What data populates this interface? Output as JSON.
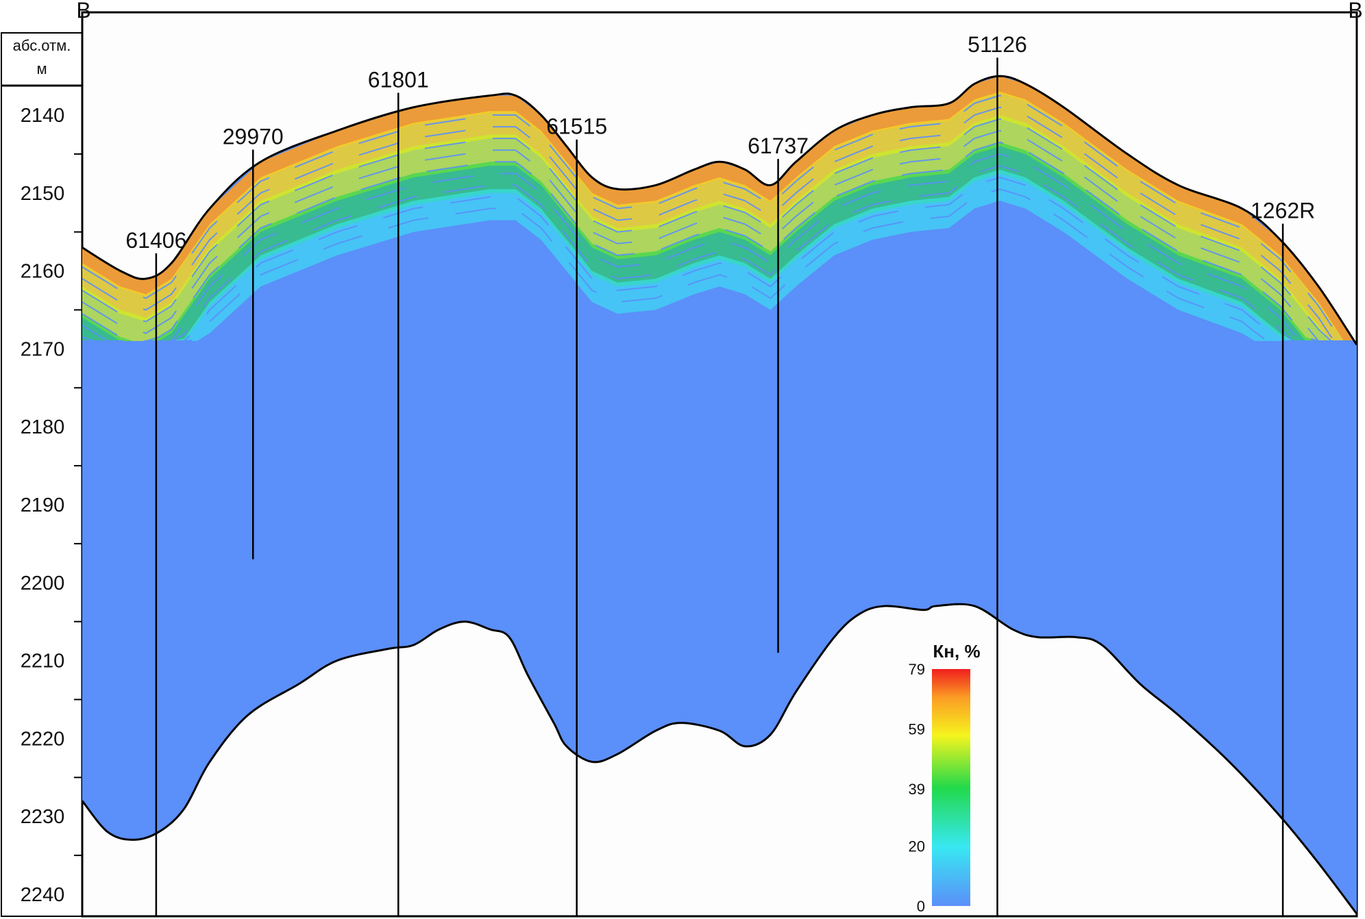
{
  "corner_labels": {
    "left": "В",
    "right": "В"
  },
  "depth_axis": {
    "header_line1": "абс.отм.",
    "header_line2": "м",
    "ticks": [
      2140,
      2150,
      2160,
      2170,
      2180,
      2190,
      2200,
      2210,
      2220,
      2230,
      2240
    ]
  },
  "wells": [
    {
      "id": "61406",
      "x_pct": 5.8,
      "bottom_depth": 2245
    },
    {
      "id": "29970",
      "x_pct": 13.4,
      "bottom_depth": 2197
    },
    {
      "id": "61801",
      "x_pct": 24.8,
      "bottom_depth": 2245
    },
    {
      "id": "61515",
      "x_pct": 38.8,
      "bottom_depth": 2245
    },
    {
      "id": "61737",
      "x_pct": 54.6,
      "bottom_depth": 2209
    },
    {
      "id": "51126",
      "x_pct": 71.8,
      "bottom_depth": 2245
    },
    {
      "id": "1262R",
      "x_pct": 94.2,
      "bottom_depth": 2245
    }
  ],
  "top_surface": [
    [
      0,
      2157
    ],
    [
      3,
      2160
    ],
    [
      5,
      2161
    ],
    [
      7,
      2159
    ],
    [
      10,
      2152
    ],
    [
      14,
      2146
    ],
    [
      20,
      2142
    ],
    [
      26,
      2139
    ],
    [
      32,
      2137.5
    ],
    [
      34,
      2137.5
    ],
    [
      36,
      2140
    ],
    [
      38,
      2144
    ],
    [
      40,
      2148
    ],
    [
      42,
      2149.5
    ],
    [
      45,
      2149
    ],
    [
      48,
      2147
    ],
    [
      50,
      2146
    ],
    [
      52,
      2147
    ],
    [
      54,
      2149
    ],
    [
      56,
      2146
    ],
    [
      59,
      2142
    ],
    [
      62,
      2140
    ],
    [
      65,
      2139
    ],
    [
      68,
      2138.5
    ],
    [
      70,
      2136
    ],
    [
      72,
      2135
    ],
    [
      74,
      2136
    ],
    [
      77,
      2139
    ],
    [
      82,
      2145
    ],
    [
      86,
      2149
    ],
    [
      91,
      2152
    ],
    [
      94,
      2156
    ],
    [
      97,
      2162
    ],
    [
      100,
      2169.5
    ]
  ],
  "bottom_surface": [
    [
      0,
      2228
    ],
    [
      2,
      2232
    ],
    [
      4,
      2233
    ],
    [
      6,
      2232
    ],
    [
      8,
      2229
    ],
    [
      10,
      2223
    ],
    [
      13,
      2217
    ],
    [
      17,
      2213
    ],
    [
      20,
      2210
    ],
    [
      24,
      2208.5
    ],
    [
      26,
      2208
    ],
    [
      28,
      2206
    ],
    [
      30,
      2205
    ],
    [
      32,
      2206
    ],
    [
      33.5,
      2207
    ],
    [
      35,
      2212
    ],
    [
      37,
      2218
    ],
    [
      38,
      2221
    ],
    [
      40,
      2223
    ],
    [
      42,
      2222
    ],
    [
      45,
      2219
    ],
    [
      47,
      2218
    ],
    [
      50,
      2219
    ],
    [
      52,
      2221
    ],
    [
      54,
      2219.5
    ],
    [
      56,
      2214
    ],
    [
      59,
      2207
    ],
    [
      61,
      2204
    ],
    [
      63,
      2203
    ],
    [
      66,
      2203.5
    ],
    [
      67,
      2203
    ],
    [
      70,
      2203
    ],
    [
      73,
      2206
    ],
    [
      75,
      2207
    ],
    [
      78,
      2207
    ],
    [
      80,
      2208
    ],
    [
      83,
      2213
    ],
    [
      86,
      2217
    ],
    [
      90,
      2223
    ],
    [
      94,
      2230
    ],
    [
      97,
      2236
    ],
    [
      100,
      2242.5
    ]
  ],
  "legend": {
    "title": "Кн, %",
    "ticks": [
      79,
      59,
      39,
      20,
      0
    ],
    "min": 0,
    "max": 79,
    "colors": [
      "#5b8ff9",
      "#38e8f2",
      "#22d94a",
      "#f6f41e",
      "#fb9c24",
      "#f01e1e"
    ]
  },
  "colors": {
    "background_blue": "#5b8ff9",
    "line": "#000000"
  }
}
